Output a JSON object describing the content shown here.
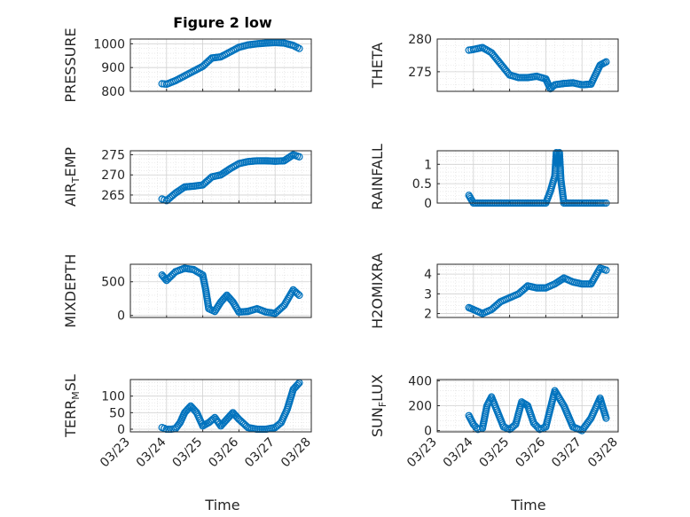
{
  "title": "Figure 2 low",
  "colors": {
    "marker": "#0072BD",
    "axis": "#262626",
    "grid": "#dedede"
  },
  "x_tick_labels": [
    "03/23",
    "03/24",
    "03/25",
    "03/26",
    "03/27",
    "03/28"
  ],
  "xlabel": "Time",
  "chart_data": [
    {
      "type": "scatter",
      "ylabel": "PRESSURE",
      "ylim": [
        800,
        1020
      ],
      "yticks": [
        800,
        900,
        1000
      ],
      "grid": "on",
      "series": [
        {
          "x": [
            "03/23 21:00",
            "03/24 00:00",
            "03/24 06:00",
            "03/24 12:00",
            "03/24 18:00",
            "03/25 00:00",
            "03/25 06:00",
            "03/25 12:00",
            "03/25 18:00",
            "03/26 00:00",
            "03/26 06:00",
            "03/26 12:00",
            "03/26 18:00",
            "03/27 00:00",
            "03/27 06:00",
            "03/27 12:00",
            "03/27 16:00"
          ],
          "y": [
            832,
            830,
            845,
            865,
            885,
            905,
            940,
            945,
            965,
            985,
            995,
            1000,
            1003,
            1005,
            1003,
            993,
            980
          ]
        }
      ]
    },
    {
      "type": "scatter",
      "ylabel": "THETA",
      "ylim": [
        272,
        280
      ],
      "yticks": [
        275,
        280
      ],
      "grid": "on",
      "series": [
        {
          "x": [
            "03/23 21:00",
            "03/24 00:00",
            "03/24 06:00",
            "03/24 12:00",
            "03/24 18:00",
            "03/25 00:00",
            "03/25 06:00",
            "03/25 12:00",
            "03/25 18:00",
            "03/26 00:00",
            "03/26 03:00",
            "03/26 06:00",
            "03/26 12:00",
            "03/26 18:00",
            "03/27 00:00",
            "03/27 06:00",
            "03/27 12:00",
            "03/27 16:00"
          ],
          "y": [
            278.3,
            278.4,
            278.7,
            277.9,
            276.2,
            274.5,
            274.1,
            274.1,
            274.3,
            273.9,
            272.4,
            273.0,
            273.2,
            273.3,
            273.0,
            273.1,
            276.0,
            276.5
          ]
        }
      ]
    },
    {
      "type": "scatter",
      "ylabel": "AIR",
      "ylabel_sub": "T",
      "ylabel_tail": "EMP",
      "ylim": [
        263,
        276
      ],
      "yticks": [
        265,
        270,
        275
      ],
      "grid": "on",
      "series": [
        {
          "x": [
            "03/23 21:00",
            "03/24 00:00",
            "03/24 06:00",
            "03/24 12:00",
            "03/24 18:00",
            "03/25 00:00",
            "03/25 06:00",
            "03/25 12:00",
            "03/25 18:00",
            "03/26 00:00",
            "03/26 06:00",
            "03/26 12:00",
            "03/26 18:00",
            "03/27 00:00",
            "03/27 06:00",
            "03/27 12:00",
            "03/27 16:00"
          ],
          "y": [
            264.0,
            263.6,
            265.5,
            267.0,
            267.2,
            267.5,
            269.5,
            270.0,
            271.5,
            272.8,
            273.3,
            273.5,
            273.5,
            273.4,
            273.5,
            275.0,
            274.5
          ]
        }
      ]
    },
    {
      "type": "scatter",
      "ylabel": "RAINFALL",
      "ylim": [
        0,
        1.35
      ],
      "yticks": [
        0,
        0.5,
        1
      ],
      "ytick_labels": [
        "0",
        "0.5",
        "1"
      ],
      "grid": "on",
      "series": [
        {
          "x": [
            "03/23 21:00",
            "03/24 00:00",
            "03/24 06:00",
            "03/24 12:00",
            "03/24 18:00",
            "03/25 00:00",
            "03/25 06:00",
            "03/25 12:00",
            "03/25 18:00",
            "03/26 00:00",
            "03/26 03:00",
            "03/26 06:00",
            "03/26 07:00",
            "03/26 08:00",
            "03/26 09:00",
            "03/26 10:00",
            "03/26 12:00",
            "03/26 18:00",
            "03/27 00:00",
            "03/27 06:00",
            "03/27 12:00",
            "03/27 16:00"
          ],
          "y": [
            0.2,
            0,
            0,
            0,
            0,
            0,
            0,
            0,
            0,
            0,
            0.3,
            0.7,
            1.3,
            1.0,
            1.3,
            0.6,
            0,
            0,
            0,
            0,
            0,
            0
          ]
        }
      ]
    },
    {
      "type": "scatter",
      "ylabel": "MIXDEPTH",
      "ylim": [
        -30,
        760
      ],
      "yticks": [
        0,
        500
      ],
      "grid": "on",
      "series": [
        {
          "x": [
            "03/23 21:00",
            "03/24 00:00",
            "03/24 06:00",
            "03/24 12:00",
            "03/24 18:00",
            "03/25 00:00",
            "03/25 02:00",
            "03/25 04:00",
            "03/25 08:00",
            "03/25 12:00",
            "03/25 16:00",
            "03/25 20:00",
            "03/26 00:00",
            "03/26 06:00",
            "03/26 12:00",
            "03/26 18:00",
            "03/27 00:00",
            "03/27 06:00",
            "03/27 12:00",
            "03/27 16:00"
          ],
          "y": [
            600,
            520,
            650,
            700,
            680,
            600,
            380,
            100,
            60,
            200,
            300,
            200,
            50,
            60,
            100,
            50,
            30,
            150,
            380,
            300
          ]
        }
      ]
    },
    {
      "type": "scatter",
      "ylabel": "H2OMIXRA",
      "ylim": [
        1.8,
        4.5
      ],
      "yticks": [
        2,
        3,
        4
      ],
      "grid": "on",
      "series": [
        {
          "x": [
            "03/23 21:00",
            "03/24 00:00",
            "03/24 06:00",
            "03/24 12:00",
            "03/24 18:00",
            "03/25 00:00",
            "03/25 06:00",
            "03/25 12:00",
            "03/25 18:00",
            "03/26 00:00",
            "03/26 06:00",
            "03/26 12:00",
            "03/26 18:00",
            "03/27 00:00",
            "03/27 06:00",
            "03/27 12:00",
            "03/27 16:00"
          ],
          "y": [
            2.3,
            2.2,
            2.0,
            2.2,
            2.6,
            2.8,
            3.0,
            3.4,
            3.3,
            3.3,
            3.5,
            3.8,
            3.6,
            3.5,
            3.5,
            4.3,
            4.2
          ]
        }
      ]
    },
    {
      "type": "scatter",
      "ylabel": "TERR",
      "ylabel_sub": "M",
      "ylabel_tail": "SL",
      "ylim": [
        -8,
        150
      ],
      "yticks": [
        0,
        50,
        100
      ],
      "grid": "on",
      "series": [
        {
          "x": [
            "03/23 21:00",
            "03/24 00:00",
            "03/24 03:00",
            "03/24 06:00",
            "03/24 09:00",
            "03/24 12:00",
            "03/24 16:00",
            "03/24 20:00",
            "03/25 00:00",
            "03/25 04:00",
            "03/25 08:00",
            "03/25 12:00",
            "03/25 16:00",
            "03/25 20:00",
            "03/26 00:00",
            "03/26 06:00",
            "03/26 12:00",
            "03/26 18:00",
            "03/27 00:00",
            "03/27 04:00",
            "03/27 08:00",
            "03/27 12:00",
            "03/27 16:00"
          ],
          "y": [
            5,
            0,
            0,
            2,
            20,
            50,
            70,
            50,
            10,
            20,
            35,
            10,
            30,
            50,
            30,
            5,
            0,
            0,
            5,
            20,
            60,
            120,
            140
          ]
        }
      ]
    },
    {
      "type": "scatter",
      "ylabel": "SUN",
      "ylabel_sub": "F",
      "ylabel_tail": "LUX",
      "ylim": [
        -10,
        410
      ],
      "yticks": [
        0,
        200,
        400
      ],
      "grid": "on",
      "series": [
        {
          "x": [
            "03/23 21:00",
            "03/24 00:00",
            "03/24 03:00",
            "03/24 06:00",
            "03/24 09:00",
            "03/24 12:00",
            "03/24 16:00",
            "03/24 20:00",
            "03/25 00:00",
            "03/25 04:00",
            "03/25 08:00",
            "03/25 12:00",
            "03/25 16:00",
            "03/25 20:00",
            "03/26 00:00",
            "03/26 06:00",
            "03/26 12:00",
            "03/26 18:00",
            "03/27 00:00",
            "03/27 06:00",
            "03/27 12:00",
            "03/27 16:00"
          ],
          "y": [
            120,
            50,
            10,
            20,
            200,
            270,
            150,
            30,
            10,
            50,
            230,
            200,
            60,
            10,
            30,
            320,
            200,
            30,
            0,
            100,
            260,
            100
          ]
        }
      ]
    }
  ]
}
